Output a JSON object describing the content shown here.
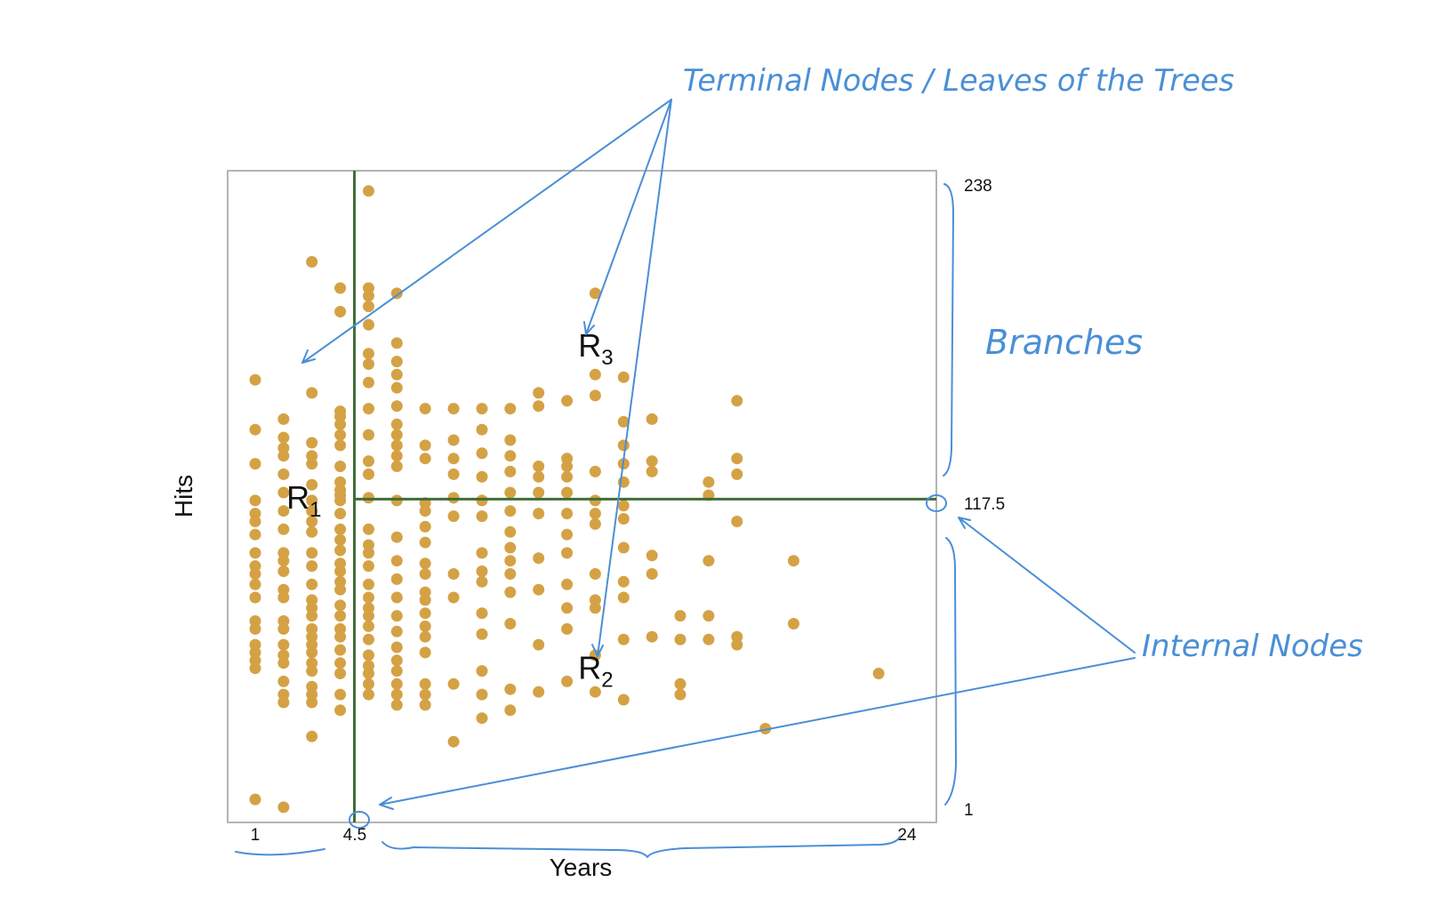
{
  "chart_data": {
    "type": "scatter",
    "title": "",
    "xlabel": "Years",
    "ylabel": "Hits",
    "xlim": [
      1,
      24
    ],
    "ylim": [
      1,
      238
    ],
    "x_ticks": [
      "1",
      "4.5",
      "24"
    ],
    "y_ticks": [
      "238",
      "117.5",
      "1"
    ],
    "grid": false,
    "point_color": "#d4a245",
    "split_color": "#3f6e35",
    "splits": [
      {
        "axis": "x",
        "value": 4.5
      },
      {
        "axis": "y",
        "value": 117.5
      }
    ],
    "regions": [
      {
        "label": "R",
        "sub": "1",
        "x": 2.1,
        "y": 118
      },
      {
        "label": "R",
        "sub": "3",
        "x": 12.4,
        "y": 176
      },
      {
        "label": "R",
        "sub": "2",
        "x": 12.4,
        "y": 53
      }
    ],
    "annotations": {
      "color": "#4a8fd6",
      "terminal_nodes": "Terminal Nodes / Leaves of the Trees",
      "branches": "Branches",
      "internal_nodes": "Internal Nodes"
    },
    "points": [
      [
        1,
        163
      ],
      [
        1,
        144
      ],
      [
        1,
        131
      ],
      [
        1,
        117
      ],
      [
        1,
        112
      ],
      [
        1,
        109
      ],
      [
        1,
        104
      ],
      [
        1,
        97
      ],
      [
        1,
        92
      ],
      [
        1,
        89
      ],
      [
        1,
        85
      ],
      [
        1,
        80
      ],
      [
        1,
        71
      ],
      [
        1,
        68
      ],
      [
        1,
        62
      ],
      [
        1,
        59
      ],
      [
        1,
        56
      ],
      [
        1,
        53
      ],
      [
        1,
        3
      ],
      [
        2,
        148
      ],
      [
        2,
        141
      ],
      [
        2,
        137
      ],
      [
        2,
        134
      ],
      [
        2,
        127
      ],
      [
        2,
        120
      ],
      [
        2,
        113
      ],
      [
        2,
        106
      ],
      [
        2,
        97
      ],
      [
        2,
        94
      ],
      [
        2,
        90
      ],
      [
        2,
        83
      ],
      [
        2,
        80
      ],
      [
        2,
        71
      ],
      [
        2,
        68
      ],
      [
        2,
        62
      ],
      [
        2,
        58
      ],
      [
        2,
        55
      ],
      [
        2,
        48
      ],
      [
        2,
        43
      ],
      [
        2,
        40
      ],
      [
        2,
        0
      ],
      [
        3,
        208
      ],
      [
        3,
        158
      ],
      [
        3,
        139
      ],
      [
        3,
        134
      ],
      [
        3,
        131
      ],
      [
        3,
        123
      ],
      [
        3,
        117
      ],
      [
        3,
        113
      ],
      [
        3,
        109
      ],
      [
        3,
        105
      ],
      [
        3,
        97
      ],
      [
        3,
        92
      ],
      [
        3,
        85
      ],
      [
        3,
        79
      ],
      [
        3,
        76
      ],
      [
        3,
        73
      ],
      [
        3,
        68
      ],
      [
        3,
        65
      ],
      [
        3,
        62
      ],
      [
        3,
        59
      ],
      [
        3,
        55
      ],
      [
        3,
        52
      ],
      [
        3,
        46
      ],
      [
        3,
        43
      ],
      [
        3,
        40
      ],
      [
        3,
        27
      ],
      [
        4,
        198
      ],
      [
        4,
        189
      ],
      [
        4,
        151
      ],
      [
        4,
        149
      ],
      [
        4,
        146
      ],
      [
        4,
        142
      ],
      [
        4,
        138
      ],
      [
        4,
        130
      ],
      [
        4,
        124
      ],
      [
        4,
        121
      ],
      [
        4,
        119
      ],
      [
        4,
        117
      ],
      [
        4,
        112
      ],
      [
        4,
        106
      ],
      [
        4,
        102
      ],
      [
        4,
        98
      ],
      [
        4,
        93
      ],
      [
        4,
        90
      ],
      [
        4,
        86
      ],
      [
        4,
        83
      ],
      [
        4,
        77
      ],
      [
        4,
        73
      ],
      [
        4,
        68
      ],
      [
        4,
        65
      ],
      [
        4,
        60
      ],
      [
        4,
        55
      ],
      [
        4,
        51
      ],
      [
        4,
        43
      ],
      [
        4,
        37
      ],
      [
        5,
        235
      ],
      [
        5,
        198
      ],
      [
        5,
        195
      ],
      [
        5,
        191
      ],
      [
        5,
        184
      ],
      [
        5,
        173
      ],
      [
        5,
        169
      ],
      [
        5,
        162
      ],
      [
        5,
        152
      ],
      [
        5,
        142
      ],
      [
        5,
        132
      ],
      [
        5,
        127
      ],
      [
        5,
        118
      ],
      [
        5,
        106
      ],
      [
        5,
        100
      ],
      [
        5,
        97
      ],
      [
        5,
        92
      ],
      [
        5,
        85
      ],
      [
        5,
        80
      ],
      [
        5,
        76
      ],
      [
        5,
        73
      ],
      [
        5,
        69
      ],
      [
        5,
        64
      ],
      [
        5,
        58
      ],
      [
        5,
        54
      ],
      [
        5,
        51
      ],
      [
        5,
        47
      ],
      [
        5,
        43
      ],
      [
        6,
        196
      ],
      [
        6,
        177
      ],
      [
        6,
        170
      ],
      [
        6,
        165
      ],
      [
        6,
        160
      ],
      [
        6,
        153
      ],
      [
        6,
        146
      ],
      [
        6,
        142
      ],
      [
        6,
        138
      ],
      [
        6,
        134
      ],
      [
        6,
        130
      ],
      [
        6,
        117
      ],
      [
        6,
        103
      ],
      [
        6,
        94
      ],
      [
        6,
        87
      ],
      [
        6,
        80
      ],
      [
        6,
        73
      ],
      [
        6,
        67
      ],
      [
        6,
        61
      ],
      [
        6,
        56
      ],
      [
        6,
        52
      ],
      [
        6,
        47
      ],
      [
        6,
        43
      ],
      [
        6,
        39
      ],
      [
        7,
        152
      ],
      [
        7,
        138
      ],
      [
        7,
        133
      ],
      [
        7,
        116
      ],
      [
        7,
        113
      ],
      [
        7,
        107
      ],
      [
        7,
        101
      ],
      [
        7,
        93
      ],
      [
        7,
        89
      ],
      [
        7,
        82
      ],
      [
        7,
        79
      ],
      [
        7,
        74
      ],
      [
        7,
        69
      ],
      [
        7,
        65
      ],
      [
        7,
        59
      ],
      [
        7,
        47
      ],
      [
        7,
        43
      ],
      [
        7,
        39
      ],
      [
        8,
        152
      ],
      [
        8,
        140
      ],
      [
        8,
        133
      ],
      [
        8,
        127
      ],
      [
        8,
        118
      ],
      [
        8,
        111
      ],
      [
        8,
        89
      ],
      [
        8,
        80
      ],
      [
        8,
        47
      ],
      [
        8,
        25
      ],
      [
        9,
        152
      ],
      [
        9,
        144
      ],
      [
        9,
        135
      ],
      [
        9,
        126
      ],
      [
        9,
        117
      ],
      [
        9,
        111
      ],
      [
        9,
        97
      ],
      [
        9,
        90
      ],
      [
        9,
        86
      ],
      [
        9,
        74
      ],
      [
        9,
        66
      ],
      [
        9,
        52
      ],
      [
        9,
        43
      ],
      [
        9,
        34
      ],
      [
        10,
        152
      ],
      [
        10,
        140
      ],
      [
        10,
        134
      ],
      [
        10,
        128
      ],
      [
        10,
        120
      ],
      [
        10,
        113
      ],
      [
        10,
        105
      ],
      [
        10,
        99
      ],
      [
        10,
        94
      ],
      [
        10,
        89
      ],
      [
        10,
        82
      ],
      [
        10,
        70
      ],
      [
        10,
        45
      ],
      [
        10,
        37
      ],
      [
        11,
        158
      ],
      [
        11,
        153
      ],
      [
        11,
        130
      ],
      [
        11,
        126
      ],
      [
        11,
        120
      ],
      [
        11,
        112
      ],
      [
        11,
        95
      ],
      [
        11,
        83
      ],
      [
        11,
        62
      ],
      [
        11,
        44
      ],
      [
        12,
        155
      ],
      [
        12,
        133
      ],
      [
        12,
        130
      ],
      [
        12,
        126
      ],
      [
        12,
        120
      ],
      [
        12,
        112
      ],
      [
        12,
        104
      ],
      [
        12,
        97
      ],
      [
        12,
        85
      ],
      [
        12,
        76
      ],
      [
        12,
        68
      ],
      [
        12,
        48
      ],
      [
        13,
        196
      ],
      [
        13,
        165
      ],
      [
        13,
        157
      ],
      [
        13,
        128
      ],
      [
        13,
        117
      ],
      [
        13,
        112
      ],
      [
        13,
        108
      ],
      [
        13,
        89
      ],
      [
        13,
        79
      ],
      [
        13,
        76
      ],
      [
        13,
        58
      ],
      [
        13,
        44
      ],
      [
        14,
        164
      ],
      [
        14,
        147
      ],
      [
        14,
        138
      ],
      [
        14,
        131
      ],
      [
        14,
        124
      ],
      [
        14,
        115
      ],
      [
        14,
        110
      ],
      [
        14,
        99
      ],
      [
        14,
        86
      ],
      [
        14,
        80
      ],
      [
        14,
        64
      ],
      [
        14,
        41
      ],
      [
        15,
        148
      ],
      [
        15,
        132
      ],
      [
        15,
        128
      ],
      [
        15,
        96
      ],
      [
        15,
        89
      ],
      [
        15,
        65
      ],
      [
        16,
        73
      ],
      [
        16,
        64
      ],
      [
        16,
        47
      ],
      [
        16,
        43
      ],
      [
        17,
        124
      ],
      [
        17,
        119
      ],
      [
        17,
        94
      ],
      [
        17,
        73
      ],
      [
        17,
        64
      ],
      [
        18,
        155
      ],
      [
        18,
        133
      ],
      [
        18,
        127
      ],
      [
        18,
        109
      ],
      [
        18,
        65
      ],
      [
        18,
        62
      ],
      [
        19,
        30
      ],
      [
        20,
        94
      ],
      [
        20,
        70
      ],
      [
        23,
        51
      ]
    ]
  }
}
